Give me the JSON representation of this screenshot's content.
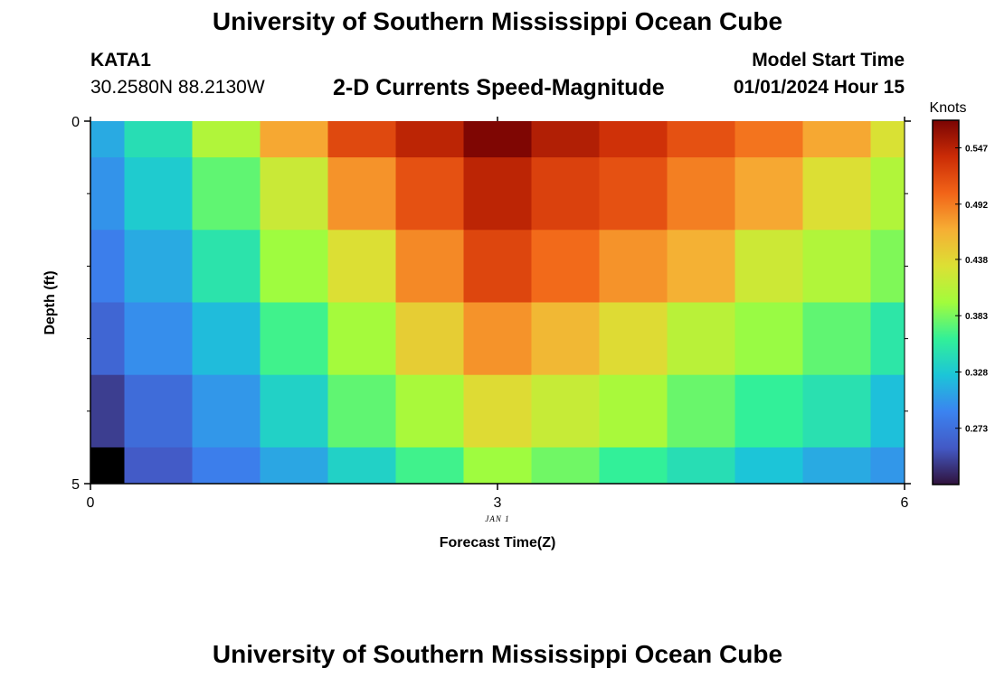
{
  "header": {
    "title": "University of Southern Mississippi Ocean Cube",
    "station_id": "KATA1",
    "station_coords": "30.2580N  88.2130W",
    "subtitle": "2-D Currents Speed-Magnitude",
    "model_start_label": "Model Start Time",
    "model_start_value": "01/01/2024 Hour 15"
  },
  "footer": {
    "title": "University of Southern Mississippi Ocean Cube"
  },
  "chart_data": {
    "type": "heatmap",
    "title": "2-D Currents Speed-Magnitude",
    "xlabel": "Forecast Time(Z)",
    "ylabel": "Depth (ft)",
    "x_date_label": "JAN 1",
    "xlim": [
      0,
      6
    ],
    "ylim": [
      0,
      5
    ],
    "x_ticks": [
      "0",
      "3",
      "6"
    ],
    "y_ticks": [
      "0",
      "5"
    ],
    "x_edges": [
      0,
      0.25,
      0.75,
      1.25,
      1.75,
      2.25,
      2.75,
      3.25,
      3.75,
      4.25,
      4.75,
      5.25,
      5.75,
      6
    ],
    "y_edges": [
      0,
      0.5,
      1.5,
      2.5,
      3.5,
      4.5,
      5
    ],
    "colorbar": {
      "label": "Knots",
      "min": 0.218,
      "max": 0.574,
      "ticks": [
        0.547,
        0.492,
        0.438,
        0.383,
        0.328,
        0.273
      ],
      "tick_labels": [
        "0.547",
        "0.492",
        "0.438",
        "0.383",
        "0.328",
        "0.273"
      ]
    },
    "values": [
      [
        0.31,
        0.345,
        0.405,
        0.47,
        0.52,
        0.545,
        0.572,
        0.55,
        0.535,
        0.515,
        0.495,
        0.47,
        0.43
      ],
      [
        0.298,
        0.33,
        0.375,
        0.42,
        0.48,
        0.515,
        0.545,
        0.525,
        0.515,
        0.49,
        0.47,
        0.432,
        0.405
      ],
      [
        0.285,
        0.31,
        0.35,
        0.395,
        0.432,
        0.485,
        0.522,
        0.5,
        0.48,
        0.465,
        0.422,
        0.405,
        0.385
      ],
      [
        0.265,
        0.295,
        0.32,
        0.365,
        0.398,
        0.445,
        0.48,
        0.46,
        0.435,
        0.41,
        0.393,
        0.375,
        0.352
      ],
      [
        0.24,
        0.27,
        0.3,
        0.335,
        0.375,
        0.4,
        0.435,
        0.418,
        0.4,
        0.378,
        0.36,
        0.347,
        0.322
      ],
      [
        0.218,
        0.255,
        0.285,
        0.308,
        0.335,
        0.365,
        0.395,
        0.38,
        0.36,
        0.345,
        0.325,
        0.31,
        0.3
      ]
    ]
  }
}
